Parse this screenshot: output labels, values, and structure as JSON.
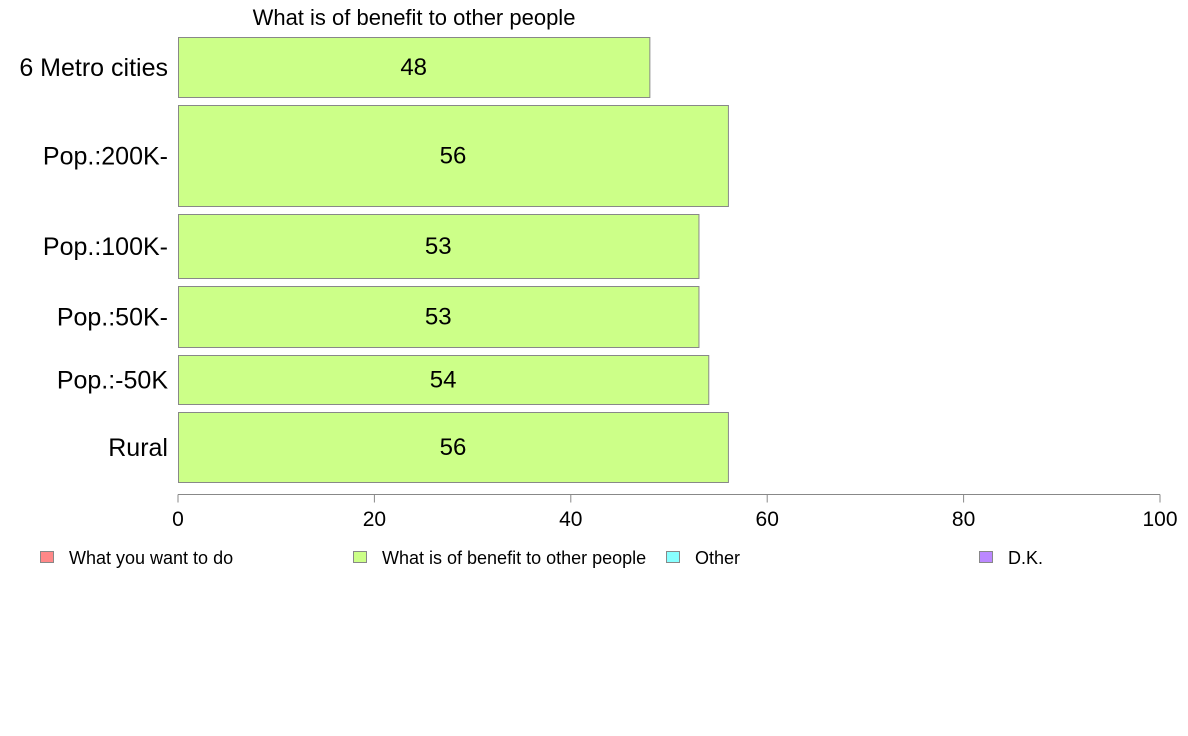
{
  "chart_data": {
    "type": "bar",
    "orientation": "horizontal",
    "title": "What is of benefit to other people",
    "categories": [
      "6 Metro cities",
      "Pop.:200K-",
      "Pop.:100K-",
      "Pop.:50K-",
      "Pop.:-50K",
      "Rural"
    ],
    "values": [
      48,
      56,
      53,
      53,
      54,
      56
    ],
    "data_labels": [
      "48",
      "56",
      "53",
      "53",
      "54",
      "56"
    ],
    "xlim": [
      0,
      100
    ],
    "xticks": [
      0,
      20,
      40,
      60,
      80,
      100
    ],
    "xtick_labels": [
      "0",
      "20",
      "40",
      "60",
      "80",
      "100"
    ],
    "grid": false,
    "bar_color": "#ccff88",
    "bar_edge_color": "#888888",
    "legend": {
      "placement": "bottom",
      "items": [
        {
          "label": "What you want to do",
          "color": "#ff8888"
        },
        {
          "label": "What is of benefit to other people",
          "color": "#ccff88"
        },
        {
          "label": "Other",
          "color": "#88ffff"
        },
        {
          "label": "D.K.",
          "color": "#bb88ff"
        }
      ]
    }
  }
}
